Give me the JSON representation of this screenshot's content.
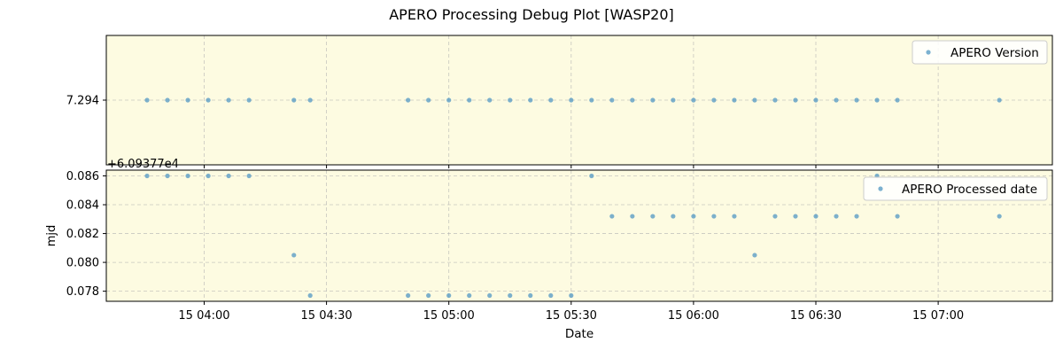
{
  "title": "APERO Processing Debug Plot [WASP20]",
  "colors": {
    "axes_facecolor": "#fdfbe1",
    "marker": "#5b9ec5",
    "grid": "#b0b0b0",
    "legend_edge": "#cccccc"
  },
  "chart_data": [
    {
      "type": "scatter",
      "panel": "top",
      "series": [
        {
          "name": "APERO Version",
          "x": [
            "03:46",
            "03:51",
            "03:56",
            "04:01",
            "04:06",
            "04:11",
            "04:22",
            "04:26",
            "04:50",
            "04:55",
            "05:00",
            "05:05",
            "05:10",
            "05:15",
            "05:20",
            "05:25",
            "05:30",
            "05:35",
            "05:40",
            "05:45",
            "05:50",
            "05:55",
            "06:00",
            "06:05",
            "06:10",
            "06:15",
            "06:20",
            "06:25",
            "06:30",
            "06:35",
            "06:40",
            "06:45",
            "06:50",
            "07:15"
          ],
          "y": [
            7.294,
            7.294,
            7.294,
            7.294,
            7.294,
            7.294,
            7.294,
            7.294,
            7.294,
            7.294,
            7.294,
            7.294,
            7.294,
            7.294,
            7.294,
            7.294,
            7.294,
            7.294,
            7.294,
            7.294,
            7.294,
            7.294,
            7.294,
            7.294,
            7.294,
            7.294,
            7.294,
            7.294,
            7.294,
            7.294,
            7.294,
            7.294,
            7.294,
            7.294
          ]
        }
      ],
      "yticks": [
        "7.294"
      ],
      "xlabel": "",
      "ylabel": "",
      "legend": "upper right",
      "grid": true
    },
    {
      "type": "scatter",
      "panel": "bottom",
      "offset_label": "+6.09377e4",
      "series": [
        {
          "name": "APERO Processed date",
          "x": [
            "03:46",
            "03:51",
            "03:56",
            "04:01",
            "04:06",
            "04:11",
            "04:22",
            "04:26",
            "04:50",
            "04:55",
            "05:00",
            "05:05",
            "05:10",
            "05:15",
            "05:20",
            "05:25",
            "05:30",
            "05:35",
            "05:40",
            "05:45",
            "05:50",
            "05:55",
            "06:00",
            "06:05",
            "06:10",
            "06:15",
            "06:20",
            "06:25",
            "06:30",
            "06:35",
            "06:40",
            "06:45",
            "06:50",
            "07:15"
          ],
          "y": [
            0.086,
            0.086,
            0.086,
            0.086,
            0.086,
            0.086,
            0.0805,
            0.0777,
            0.0777,
            0.0777,
            0.0777,
            0.0777,
            0.0777,
            0.0777,
            0.0777,
            0.0777,
            0.0777,
            0.086,
            0.0832,
            0.0832,
            0.0832,
            0.0832,
            0.0832,
            0.0832,
            0.0832,
            0.0805,
            0.0832,
            0.0832,
            0.0832,
            0.0832,
            0.0832,
            0.086,
            0.0832,
            0.0832
          ]
        }
      ],
      "ylim": [
        0.0773,
        0.0864
      ],
      "yticks": [
        "0.078",
        "0.080",
        "0.082",
        "0.084",
        "0.086"
      ],
      "xlabel": "Date",
      "ylabel": "mjd",
      "legend": "upper right",
      "grid": true
    }
  ],
  "xaxis": {
    "range": [
      "03:36",
      "07:28"
    ],
    "ticks": [
      {
        "t": "04:00",
        "label": "15 04:00"
      },
      {
        "t": "04:30",
        "label": "15 04:30"
      },
      {
        "t": "05:00",
        "label": "15 05:00"
      },
      {
        "t": "05:30",
        "label": "15 05:30"
      },
      {
        "t": "06:00",
        "label": "15 06:00"
      },
      {
        "t": "06:30",
        "label": "15 06:30"
      },
      {
        "t": "07:00",
        "label": "15 07:00"
      }
    ]
  }
}
